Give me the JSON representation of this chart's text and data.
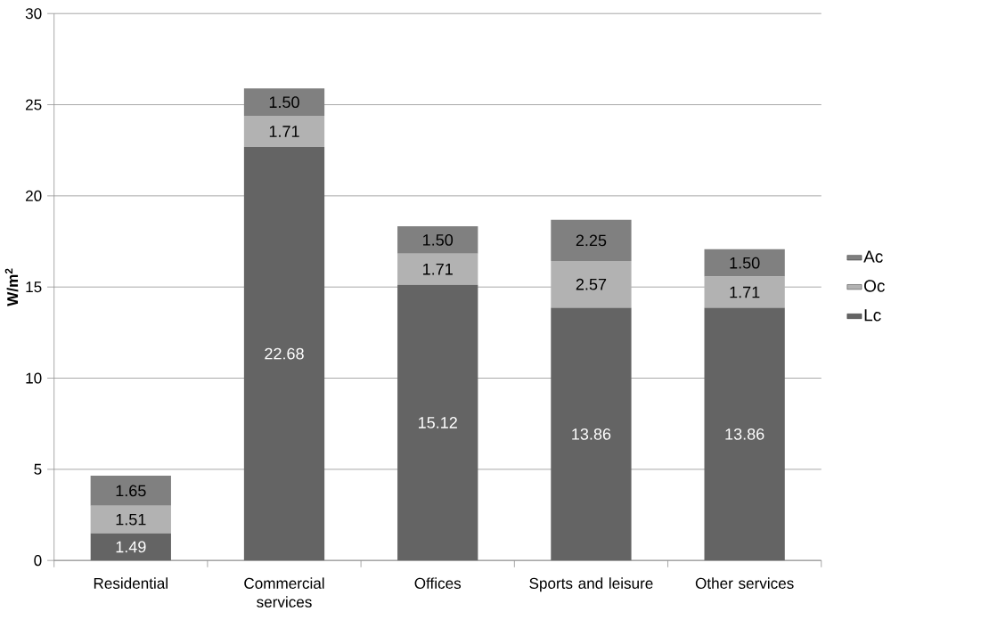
{
  "chart_data": {
    "type": "bar",
    "stacked": true,
    "ylabel": "W/m$^{2}$",
    "categories": [
      "Residential",
      "Commercial services",
      "Offices",
      "Sports and leisure",
      "Other services"
    ],
    "series": [
      {
        "name": "Lc",
        "color": "#646464",
        "values": [
          1.49,
          22.68,
          15.12,
          13.86,
          13.86
        ],
        "value_labels": [
          "1.49",
          "22.68",
          "15.12",
          "13.86",
          "13.86"
        ]
      },
      {
        "name": "Oc",
        "color": "#b2b2b2",
        "values": [
          1.51,
          1.71,
          1.71,
          2.57,
          1.71
        ],
        "value_labels": [
          "1.51",
          "1.71",
          "1.71",
          "2.57",
          "1.71"
        ]
      },
      {
        "name": "Ac",
        "color": "#808080",
        "values": [
          1.65,
          1.5,
          1.5,
          2.25,
          1.5
        ],
        "value_labels": [
          "1.65",
          "1.50",
          "1.50",
          "2.25",
          "1.50"
        ]
      }
    ],
    "ylim": [
      0,
      30
    ],
    "yticks": [
      0,
      5,
      10,
      15,
      20,
      25,
      30
    ],
    "grid": "y",
    "legend": "right"
  }
}
